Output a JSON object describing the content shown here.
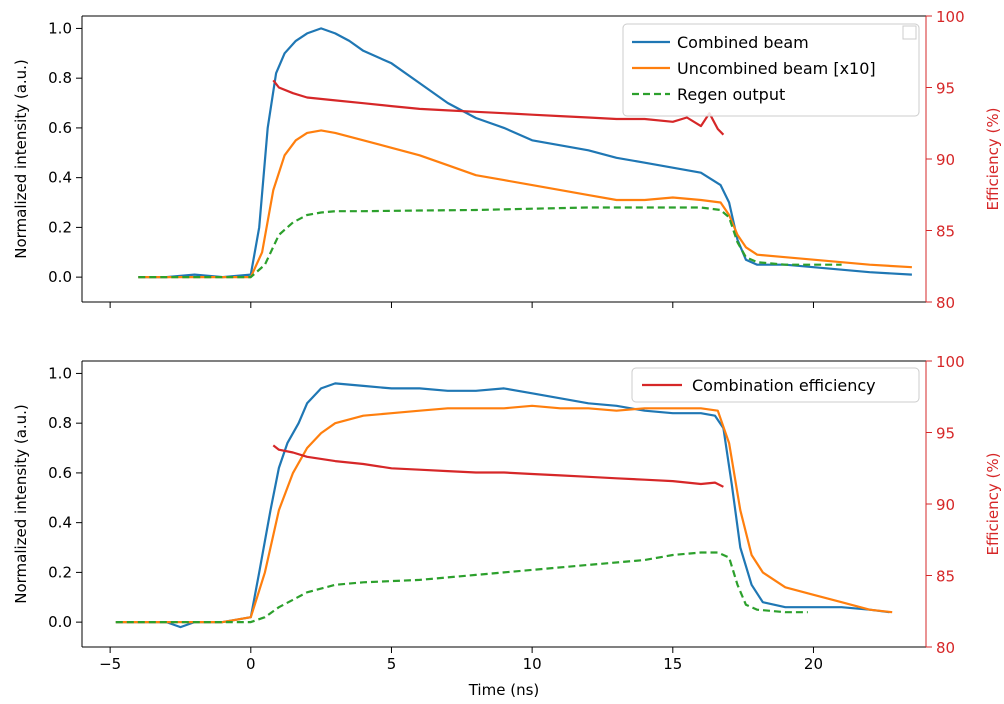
{
  "chart_data": [
    {
      "type": "line",
      "panel": "top",
      "xlabel": "",
      "ylabel": "Normalized intensity (a.u.)",
      "y2label": "Efficiency (%)",
      "xlim": [
        -6,
        24
      ],
      "ylim": [
        -0.1,
        1.05
      ],
      "y2lim": [
        80,
        100
      ],
      "xticks": [
        -5,
        0,
        5,
        10,
        15,
        20
      ],
      "yticks": [
        0.0,
        0.2,
        0.4,
        0.6,
        0.8,
        1.0
      ],
      "y2ticks": [
        80,
        85,
        90,
        95,
        100
      ],
      "legend_position": "top-right",
      "series": [
        {
          "name": "Combined beam",
          "axis": "left",
          "color": "#1f77b4",
          "style": "solid",
          "x": [
            -4,
            -3,
            -2,
            -1,
            0,
            0.3,
            0.6,
            0.9,
            1.2,
            1.6,
            2.0,
            2.5,
            3.0,
            3.5,
            4.0,
            5.0,
            6.0,
            7.0,
            8.0,
            9.0,
            10.0,
            11.0,
            12.0,
            13.0,
            14.0,
            15.0,
            16.0,
            16.7,
            17.0,
            17.3,
            17.6,
            18.0,
            19.0,
            20.0,
            21.0,
            22.0,
            23.5
          ],
          "y": [
            0.0,
            0.0,
            0.01,
            0.0,
            0.01,
            0.2,
            0.6,
            0.82,
            0.9,
            0.95,
            0.98,
            1.0,
            0.98,
            0.95,
            0.91,
            0.86,
            0.78,
            0.7,
            0.64,
            0.6,
            0.55,
            0.53,
            0.51,
            0.48,
            0.46,
            0.44,
            0.42,
            0.37,
            0.3,
            0.15,
            0.07,
            0.05,
            0.05,
            0.04,
            0.03,
            0.02,
            0.01
          ]
        },
        {
          "name": "Uncombined beam [x10]",
          "axis": "left",
          "color": "#ff7f0e",
          "style": "solid",
          "x": [
            -4,
            -3,
            -2,
            -1,
            0,
            0.4,
            0.8,
            1.2,
            1.6,
            2.0,
            2.5,
            3.0,
            4.0,
            5.0,
            6.0,
            7.0,
            8.0,
            9.0,
            10.0,
            11.0,
            12.0,
            13.0,
            14.0,
            15.0,
            16.0,
            16.7,
            17.0,
            17.3,
            17.6,
            18.0,
            19.0,
            20.0,
            21.0,
            22.0,
            23.5
          ],
          "y": [
            0.0,
            0.0,
            0.0,
            0.0,
            0.0,
            0.1,
            0.35,
            0.49,
            0.55,
            0.58,
            0.59,
            0.58,
            0.55,
            0.52,
            0.49,
            0.45,
            0.41,
            0.39,
            0.37,
            0.35,
            0.33,
            0.31,
            0.31,
            0.32,
            0.31,
            0.3,
            0.25,
            0.17,
            0.12,
            0.09,
            0.08,
            0.07,
            0.06,
            0.05,
            0.04
          ]
        },
        {
          "name": "Regen output",
          "axis": "left",
          "color": "#2ca02c",
          "style": "dashed",
          "x": [
            -4,
            -2,
            0,
            0.5,
            1.0,
            1.5,
            2.0,
            2.5,
            3.0,
            4.0,
            6.0,
            8.0,
            10.0,
            12.0,
            14.0,
            16.0,
            16.7,
            17.0,
            17.3,
            17.6,
            18.0,
            19.0,
            20.0,
            21.0
          ],
          "y": [
            0.0,
            0.0,
            0.0,
            0.05,
            0.17,
            0.22,
            0.25,
            0.26,
            0.265,
            0.265,
            0.268,
            0.27,
            0.275,
            0.28,
            0.28,
            0.28,
            0.27,
            0.24,
            0.14,
            0.08,
            0.06,
            0.05,
            0.05,
            0.05
          ]
        },
        {
          "name": "Combination efficiency",
          "axis": "right",
          "color": "#d62728",
          "style": "solid",
          "x": [
            0.8,
            1.0,
            1.5,
            2.0,
            3.0,
            4.0,
            5.0,
            6.0,
            7.0,
            8.0,
            9.0,
            10.0,
            11.0,
            12.0,
            13.0,
            14.0,
            15.0,
            15.5,
            16.0,
            16.3,
            16.6,
            16.8
          ],
          "y": [
            95.5,
            95.0,
            94.6,
            94.3,
            94.1,
            93.9,
            93.7,
            93.5,
            93.4,
            93.3,
            93.2,
            93.1,
            93.0,
            92.9,
            92.8,
            92.8,
            92.6,
            92.9,
            92.3,
            93.2,
            92.1,
            91.7
          ]
        }
      ]
    },
    {
      "type": "line",
      "panel": "bottom",
      "xlabel": "Time (ns)",
      "ylabel": "Normalized intensity (a.u.)",
      "y2label": "Efficiency (%)",
      "xlim": [
        -6,
        24
      ],
      "ylim": [
        -0.1,
        1.05
      ],
      "y2lim": [
        80,
        100
      ],
      "xticks": [
        -5,
        0,
        5,
        10,
        15,
        20
      ],
      "yticks": [
        0.0,
        0.2,
        0.4,
        0.6,
        0.8,
        1.0
      ],
      "y2ticks": [
        80,
        85,
        90,
        95,
        100
      ],
      "legend_position": "top-right",
      "series": [
        {
          "name": "Combined beam",
          "axis": "left",
          "color": "#1f77b4",
          "style": "solid",
          "x": [
            -4.8,
            -4,
            -3,
            -2.5,
            -2,
            -1,
            0,
            0.3,
            0.7,
            1.0,
            1.3,
            1.7,
            2.0,
            2.5,
            3.0,
            4.0,
            5.0,
            6.0,
            7.0,
            8.0,
            9.0,
            10.0,
            11.0,
            12.0,
            13.0,
            14.0,
            15.0,
            16.0,
            16.5,
            16.8,
            17.1,
            17.4,
            17.8,
            18.2,
            19.0,
            20.0,
            21.0,
            22.0,
            22.7
          ],
          "y": [
            0.0,
            0.0,
            0.0,
            -0.02,
            0.0,
            0.0,
            0.02,
            0.2,
            0.45,
            0.62,
            0.72,
            0.8,
            0.88,
            0.94,
            0.96,
            0.95,
            0.94,
            0.94,
            0.93,
            0.93,
            0.94,
            0.92,
            0.9,
            0.88,
            0.87,
            0.85,
            0.84,
            0.84,
            0.83,
            0.78,
            0.55,
            0.3,
            0.15,
            0.08,
            0.06,
            0.06,
            0.06,
            0.05,
            0.04
          ]
        },
        {
          "name": "",
          "axis": "left",
          "color": "#ff7f0e",
          "style": "solid",
          "x": [
            -4.8,
            -4,
            -3,
            -2,
            -1,
            0,
            0.5,
            1.0,
            1.5,
            2.0,
            2.5,
            3.0,
            4.0,
            5.0,
            6.0,
            7.0,
            8.0,
            9.0,
            10.0,
            11.0,
            12.0,
            13.0,
            14.0,
            15.0,
            16.0,
            16.6,
            17.0,
            17.4,
            17.8,
            18.2,
            19.0,
            20.0,
            21.0,
            22.0,
            22.8
          ],
          "y": [
            0.0,
            0.0,
            0.0,
            0.0,
            0.0,
            0.02,
            0.2,
            0.45,
            0.6,
            0.7,
            0.76,
            0.8,
            0.83,
            0.84,
            0.85,
            0.86,
            0.86,
            0.86,
            0.87,
            0.86,
            0.86,
            0.85,
            0.86,
            0.86,
            0.86,
            0.85,
            0.72,
            0.45,
            0.27,
            0.2,
            0.14,
            0.11,
            0.08,
            0.05,
            0.04
          ]
        },
        {
          "name": "",
          "axis": "left",
          "color": "#2ca02c",
          "style": "dashed",
          "x": [
            -4.8,
            -2,
            0,
            0.5,
            1.0,
            2.0,
            3.0,
            4.0,
            6.0,
            8.0,
            10.0,
            12.0,
            14.0,
            15.0,
            16.0,
            16.6,
            17.0,
            17.3,
            17.6,
            18.0,
            19.0,
            19.8
          ],
          "y": [
            0.0,
            0.0,
            0.0,
            0.02,
            0.06,
            0.12,
            0.15,
            0.16,
            0.17,
            0.19,
            0.21,
            0.23,
            0.25,
            0.27,
            0.28,
            0.28,
            0.26,
            0.15,
            0.07,
            0.05,
            0.04,
            0.04
          ]
        },
        {
          "name": "Combination efficiency",
          "axis": "right",
          "color": "#d62728",
          "style": "solid",
          "x": [
            0.8,
            1.0,
            1.5,
            2.0,
            3.0,
            4.0,
            5.0,
            6.0,
            7.0,
            8.0,
            9.0,
            10.0,
            11.0,
            12.0,
            13.0,
            14.0,
            15.0,
            16.0,
            16.5,
            16.8
          ],
          "y": [
            94.1,
            93.8,
            93.6,
            93.3,
            93.0,
            92.8,
            92.5,
            92.4,
            92.3,
            92.2,
            92.2,
            92.1,
            92.0,
            91.9,
            91.8,
            91.7,
            91.6,
            91.4,
            91.5,
            91.2
          ]
        }
      ]
    }
  ]
}
